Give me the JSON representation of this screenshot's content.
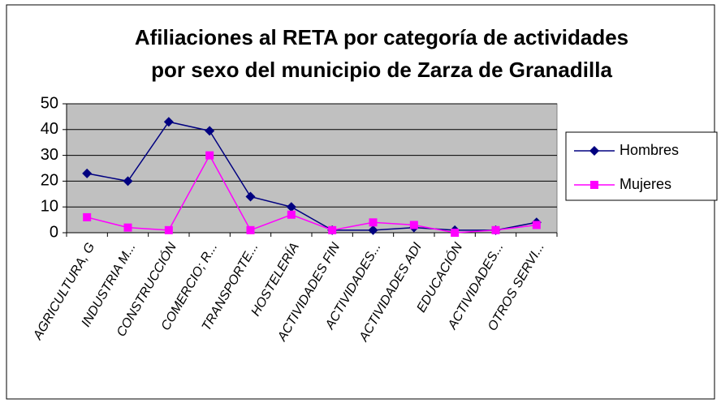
{
  "chart_data": {
    "type": "line",
    "title": [
      "Afiliaciones al RETA por categoría de actividades",
      "por sexo del municipio de Zarza de Granadilla"
    ],
    "categories": [
      "AGRICULTURA, G",
      "INDUSTRIA M...",
      "CONSTRUCCIÓN",
      "COMERCIO; R...",
      "TRANSPORTE...",
      "HOSTELERÍA",
      "ACTIVIDADES FIN",
      "ACTIVIDADES...",
      "ACTIVIDADES ADI",
      "EDUCACIÓN",
      "ACTIVIDADES...",
      "OTROS SERVI..."
    ],
    "series": [
      {
        "name": "Hombres",
        "color": "#000080",
        "marker": "diamond",
        "values": [
          23,
          20,
          43,
          39.5,
          14,
          10,
          1,
          1,
          2,
          1,
          1,
          4
        ]
      },
      {
        "name": "Mujeres",
        "color": "#ff00ff",
        "marker": "square",
        "values": [
          6,
          2,
          1,
          30,
          1,
          7,
          1,
          4,
          3,
          0,
          1,
          3
        ]
      }
    ],
    "ylim": [
      0,
      50
    ],
    "yticks": [
      0,
      10,
      20,
      30,
      40,
      50
    ],
    "grid": true,
    "legend": "right"
  }
}
